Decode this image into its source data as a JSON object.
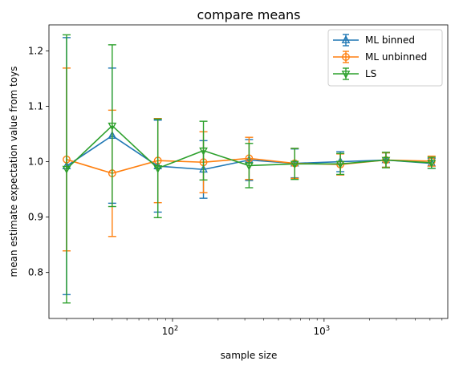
{
  "chart_data": {
    "type": "line",
    "title": "compare means",
    "xlabel": "sample size",
    "ylabel": "mean estimate expectation value from toys",
    "xscale": "log",
    "xlim": [
      15.3,
      6550
    ],
    "ylim": [
      0.717,
      1.247
    ],
    "x_ticks": [
      {
        "value": 100,
        "base": "10",
        "exp": "2"
      },
      {
        "value": 1000,
        "base": "10",
        "exp": "3"
      }
    ],
    "y_ticks": [
      {
        "value": 0.8,
        "label": "0.8"
      },
      {
        "value": 0.9,
        "label": "0.9"
      },
      {
        "value": 1.0,
        "label": "1.0"
      },
      {
        "value": 1.1,
        "label": "1.1"
      },
      {
        "value": 1.2,
        "label": "1.2"
      }
    ],
    "grid": false,
    "legend_position": "top-right",
    "series": [
      {
        "name": "ML binned",
        "color": "#1f77b4",
        "marker": "triangle-up",
        "x": [
          20,
          40,
          80,
          160,
          320,
          640,
          1280,
          2560,
          5120
        ],
        "y": [
          0.992,
          1.047,
          0.992,
          0.986,
          1.003,
          0.997,
          1.0,
          1.003,
          0.997
        ],
        "err": [
          0.232,
          0.122,
          0.083,
          0.052,
          0.037,
          0.026,
          0.018,
          0.013,
          0.009
        ]
      },
      {
        "name": "ML unbinned",
        "color": "#ff7f0e",
        "marker": "circle",
        "x": [
          20,
          40,
          80,
          160,
          320,
          640,
          1280,
          2560,
          5120
        ],
        "y": [
          1.004,
          0.979,
          1.002,
          0.999,
          1.006,
          0.997,
          0.995,
          1.003,
          1.001
        ],
        "err": [
          0.165,
          0.114,
          0.076,
          0.055,
          0.038,
          0.027,
          0.019,
          0.013,
          0.009
        ]
      },
      {
        "name": "LS",
        "color": "#2ca02c",
        "marker": "triangle-down",
        "x": [
          20,
          40,
          80,
          160,
          320,
          640,
          1280,
          2560,
          5120
        ],
        "y": [
          0.987,
          1.065,
          0.988,
          1.02,
          0.993,
          0.996,
          0.996,
          1.003,
          0.998
        ],
        "err": [
          0.242,
          0.146,
          0.089,
          0.053,
          0.04,
          0.028,
          0.019,
          0.014,
          0.01
        ]
      }
    ]
  }
}
